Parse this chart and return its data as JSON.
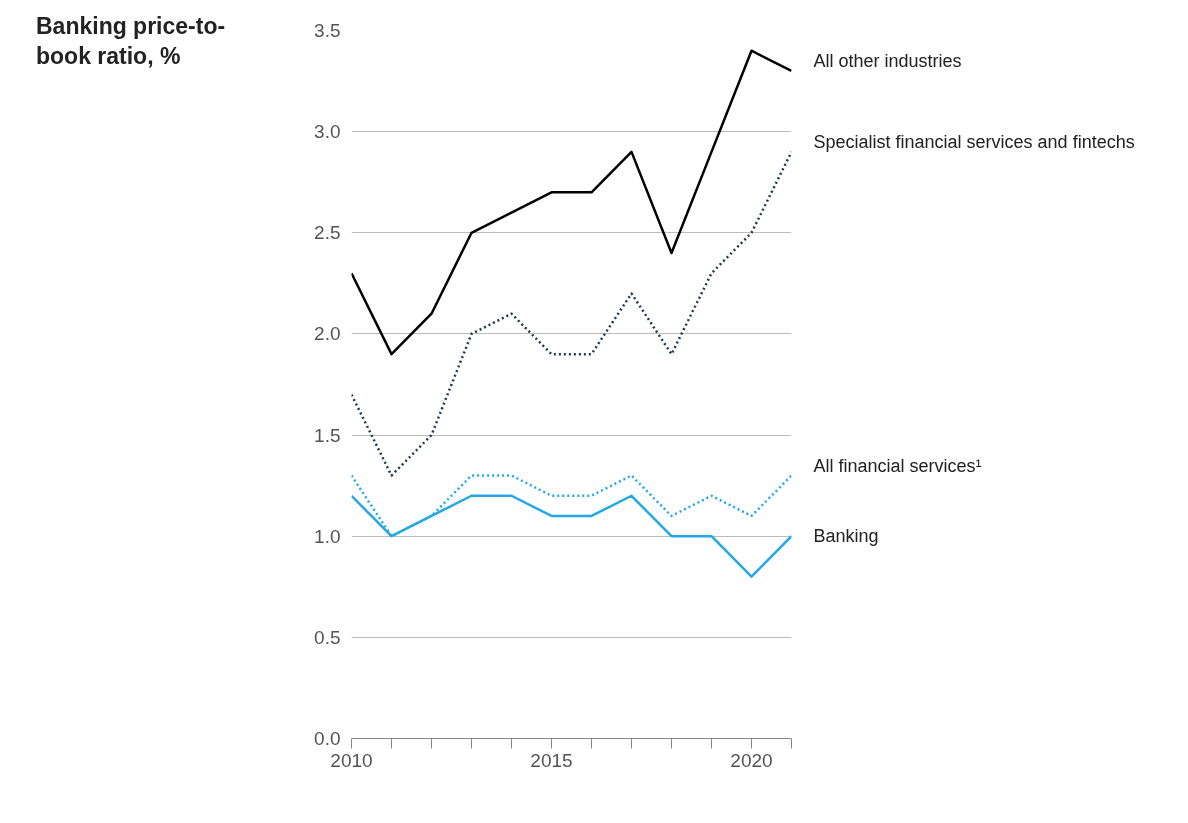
{
  "chart_data": {
    "type": "line",
    "title": "Banking price-to-book ratio, %",
    "x": [
      2010,
      2011,
      2012,
      2013,
      2014,
      2015,
      2016,
      2017,
      2018,
      2019,
      2020,
      2021
    ],
    "series": [
      {
        "name": "All other industries",
        "color": "#000000",
        "line_style": "solid",
        "values": [
          2.3,
          1.9,
          2.1,
          2.5,
          2.6,
          2.7,
          2.7,
          2.9,
          2.4,
          2.9,
          3.4,
          3.3
        ]
      },
      {
        "name": "Specialist financial services and fintechs",
        "color": "#1f3a4d",
        "line_style": "dotted",
        "values": [
          1.7,
          1.3,
          1.5,
          2.0,
          2.1,
          1.9,
          1.9,
          2.2,
          1.9,
          2.3,
          2.5,
          2.9
        ]
      },
      {
        "name": "All financial services¹",
        "color": "#22a8e6",
        "line_style": "dotted",
        "values": [
          1.3,
          1.0,
          1.1,
          1.3,
          1.3,
          1.2,
          1.2,
          1.3,
          1.1,
          1.2,
          1.1,
          1.3
        ]
      },
      {
        "name": "Banking",
        "color": "#22a8e6",
        "line_style": "solid",
        "values": [
          1.2,
          1.0,
          1.1,
          1.2,
          1.2,
          1.1,
          1.1,
          1.2,
          1.0,
          1.0,
          0.8,
          1.0
        ]
      }
    ],
    "xlim": [
      2010,
      2021
    ],
    "xticks": [
      2010,
      {
        "value": 2011,
        "label": null
      },
      {
        "value": 2012,
        "label": null
      },
      {
        "value": 2013,
        "label": null
      },
      {
        "value": 2014,
        "label": null
      },
      2015,
      {
        "value": 2016,
        "label": null
      },
      {
        "value": 2017,
        "label": null
      },
      {
        "value": 2018,
        "label": null
      },
      {
        "value": 2019,
        "label": null
      },
      2020,
      {
        "value": 2021,
        "label": null
      }
    ],
    "ylim": [
      0,
      3.5
    ],
    "yticks": [
      {
        "value": 0,
        "label": "0.0"
      },
      0.5,
      {
        "value": 1,
        "label": "1.0"
      },
      1.5,
      {
        "value": 2,
        "label": "2.0"
      },
      2.5,
      {
        "value": 3,
        "label": "3.0"
      },
      3.5
    ],
    "grid": "y",
    "legend": false
  }
}
